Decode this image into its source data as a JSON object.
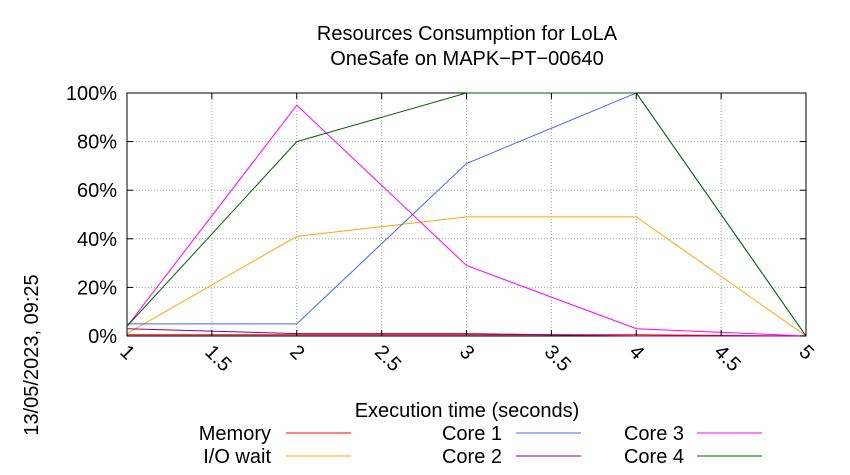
{
  "chart_data": {
    "type": "line",
    "title": [
      "Resources Consumption for LoLA",
      "OneSafe on MAPK−PT−00640"
    ],
    "xlabel": "Execution time (seconds)",
    "ylabel": "",
    "side_label": "13/05/2023, 09:25",
    "xlim": [
      1,
      5
    ],
    "ylim": [
      0,
      100
    ],
    "x_ticks": [
      "1",
      "1.5",
      "2",
      "2.5",
      "3",
      "3.5",
      "4",
      "4.5",
      "5"
    ],
    "y_ticks": [
      "0%",
      "20%",
      "40%",
      "60%",
      "80%",
      "100%"
    ],
    "grid": true,
    "legend_position": "bottom",
    "x": [
      1,
      2,
      3,
      4,
      5
    ],
    "series": [
      {
        "name": "Memory",
        "color": "#ff0000",
        "values": [
          0.5,
          0.5,
          0.5,
          0.5,
          0
        ]
      },
      {
        "name": "I/O wait",
        "color": "#ffa500",
        "values": [
          1,
          41,
          49,
          49,
          0
        ]
      },
      {
        "name": "Core 1",
        "color": "#4169e1",
        "values": [
          5,
          5,
          71,
          100,
          0
        ]
      },
      {
        "name": "Core 2",
        "color": "#8b008b",
        "values": [
          3,
          1,
          1,
          0,
          0
        ]
      },
      {
        "name": "Core 3",
        "color": "#ff00ff",
        "values": [
          4,
          95,
          29,
          3,
          0
        ]
      },
      {
        "name": "Core 4",
        "color": "#006400",
        "values": [
          4,
          80,
          100,
          100,
          0
        ]
      }
    ]
  }
}
